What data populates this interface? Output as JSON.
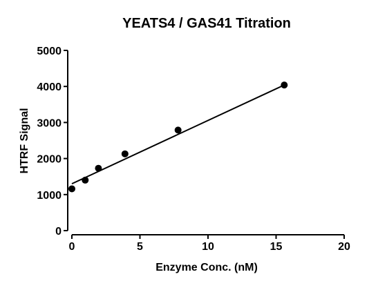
{
  "chart_data": {
    "type": "scatter",
    "title": "YEATS4 / GAS41 Titration",
    "xlabel": "Enzyme Conc. (nM)",
    "ylabel": "HTRF Signal",
    "xlim": [
      0,
      20
    ],
    "ylim": [
      0,
      5000
    ],
    "x_ticks": [
      0,
      5,
      10,
      15,
      20
    ],
    "y_ticks": [
      0,
      1000,
      2000,
      3000,
      4000,
      5000
    ],
    "x_tick_labels": [
      "0",
      "5",
      "10",
      "15",
      "20"
    ],
    "y_tick_labels": [
      "0",
      "1000",
      "2000",
      "3000",
      "4000",
      "5000"
    ],
    "grid": false,
    "legend": "none",
    "series": [
      {
        "x": [
          0,
          0.98,
          1.95,
          3.9,
          7.8,
          15.6
        ],
        "y": [
          1160,
          1400,
          1730,
          2130,
          2790,
          4040
        ],
        "marker": "filled-circle",
        "color": "#000000"
      }
    ],
    "fit_line": {
      "type": "linear",
      "x_range": [
        0,
        15.6
      ],
      "y_range": [
        1300,
        4040
      ],
      "color": "#000000"
    }
  }
}
